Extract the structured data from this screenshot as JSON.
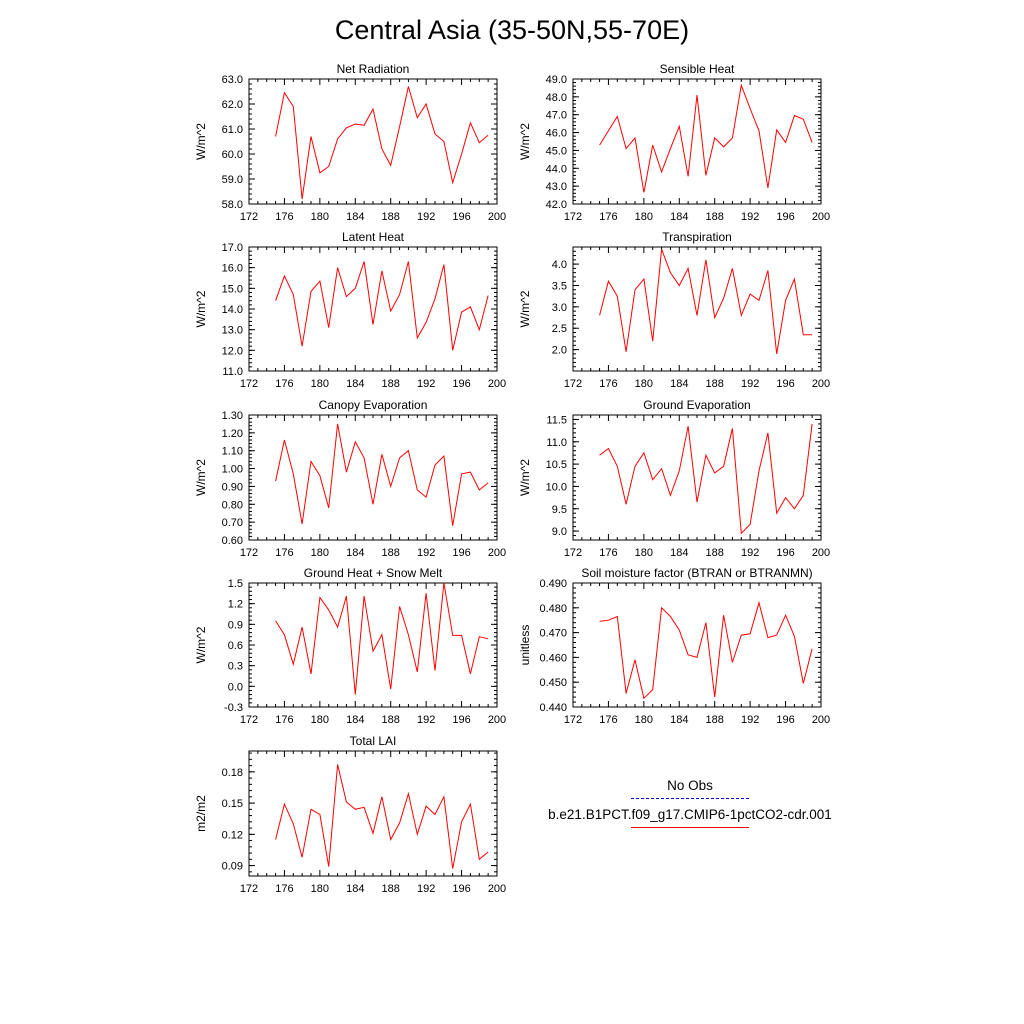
{
  "title": "Central Asia (35-50N,55-70E)",
  "legend": {
    "entries": [
      {
        "label": "No Obs",
        "color": "#0000cc",
        "style": "dashed"
      },
      {
        "label": "b.e21.B1PCT.f09_g17.CMIP6-1pctCO2-cdr.001",
        "color": "#ff0000",
        "style": "solid"
      }
    ]
  },
  "series_color": "#ff0000",
  "chart_data": [
    {
      "type": "line",
      "title": "Net Radiation",
      "xlabel": "",
      "ylabel": "W/m^2",
      "xlim": [
        172,
        200
      ],
      "ylim": [
        58.0,
        63.0
      ],
      "xticks": [
        "172",
        "176",
        "180",
        "184",
        "188",
        "192",
        "196",
        "200"
      ],
      "yticks": [
        "58.0",
        "59.0",
        "60.0",
        "61.0",
        "62.0",
        "63.0"
      ],
      "x": [
        175,
        176,
        177,
        178,
        179,
        180,
        181,
        182,
        183,
        184,
        185,
        186,
        187,
        188,
        189,
        190,
        191,
        192,
        193,
        194,
        195,
        196,
        197,
        198,
        199
      ],
      "series": [
        {
          "values": [
            60.7,
            62.45,
            61.9,
            58.2,
            60.7,
            59.25,
            59.5,
            60.6,
            61.05,
            61.2,
            61.15,
            61.8,
            60.2,
            59.55,
            61.1,
            62.7,
            61.45,
            62.0,
            60.8,
            60.5,
            58.85,
            60.0,
            61.25,
            60.45,
            60.75
          ]
        }
      ]
    },
    {
      "type": "line",
      "title": "Sensible Heat",
      "xlabel": "",
      "ylabel": "W/m^2",
      "xlim": [
        172,
        200
      ],
      "ylim": [
        42.0,
        49.0
      ],
      "xticks": [
        "172",
        "176",
        "180",
        "184",
        "188",
        "192",
        "196",
        "200"
      ],
      "yticks": [
        "42.0",
        "43.0",
        "44.0",
        "45.0",
        "46.0",
        "47.0",
        "48.0",
        "49.0"
      ],
      "x": [
        175,
        176,
        177,
        178,
        179,
        180,
        181,
        182,
        183,
        184,
        185,
        186,
        187,
        188,
        189,
        190,
        191,
        192,
        193,
        194,
        195,
        196,
        197,
        198,
        199
      ],
      "series": [
        {
          "values": [
            45.3,
            46.1,
            46.9,
            45.1,
            45.7,
            42.65,
            45.3,
            43.8,
            45.1,
            46.35,
            43.55,
            48.1,
            43.6,
            45.7,
            45.2,
            45.7,
            48.65,
            47.35,
            46.1,
            42.9,
            46.15,
            45.45,
            46.95,
            46.75,
            45.45
          ]
        }
      ]
    },
    {
      "type": "line",
      "title": "Latent Heat",
      "xlabel": "",
      "ylabel": "W/m^2",
      "xlim": [
        172,
        200
      ],
      "ylim": [
        11.0,
        17.0
      ],
      "xticks": [
        "172",
        "176",
        "180",
        "184",
        "188",
        "192",
        "196",
        "200"
      ],
      "yticks": [
        "11.0",
        "12.0",
        "13.0",
        "14.0",
        "15.0",
        "16.0",
        "17.0"
      ],
      "x": [
        175,
        176,
        177,
        178,
        179,
        180,
        181,
        182,
        183,
        184,
        185,
        186,
        187,
        188,
        189,
        190,
        191,
        192,
        193,
        194,
        195,
        196,
        197,
        198,
        199
      ],
      "series": [
        {
          "values": [
            14.4,
            15.6,
            14.7,
            12.2,
            14.85,
            15.35,
            13.1,
            16.0,
            14.6,
            15.0,
            16.3,
            13.25,
            15.85,
            13.9,
            14.7,
            16.3,
            12.6,
            13.35,
            14.5,
            16.15,
            12.0,
            13.85,
            14.1,
            13.0,
            14.65
          ]
        }
      ]
    },
    {
      "type": "line",
      "title": "Transpiration",
      "xlabel": "",
      "ylabel": "W/m^2",
      "xlim": [
        172,
        200
      ],
      "ylim": [
        1.5,
        4.4
      ],
      "xticks": [
        "172",
        "176",
        "180",
        "184",
        "188",
        "192",
        "196",
        "200"
      ],
      "yticks": [
        "2.0",
        "2.5",
        "3.0",
        "3.5",
        "4.0"
      ],
      "x": [
        175,
        176,
        177,
        178,
        179,
        180,
        181,
        182,
        183,
        184,
        185,
        186,
        187,
        188,
        189,
        190,
        191,
        192,
        193,
        194,
        195,
        196,
        197,
        198,
        199
      ],
      "series": [
        {
          "values": [
            2.8,
            3.6,
            3.25,
            1.95,
            3.4,
            3.65,
            2.2,
            4.35,
            3.8,
            3.5,
            3.9,
            2.8,
            4.1,
            2.75,
            3.2,
            3.9,
            2.8,
            3.3,
            3.15,
            3.85,
            1.9,
            3.15,
            3.65,
            2.35,
            2.35
          ]
        }
      ]
    },
    {
      "type": "line",
      "title": "Canopy Evaporation",
      "xlabel": "",
      "ylabel": "W/m^2",
      "xlim": [
        172,
        200
      ],
      "ylim": [
        0.6,
        1.3
      ],
      "xticks": [
        "172",
        "176",
        "180",
        "184",
        "188",
        "192",
        "196",
        "200"
      ],
      "yticks": [
        "0.60",
        "0.70",
        "0.80",
        "0.90",
        "1.00",
        "1.10",
        "1.20",
        "1.30"
      ],
      "x": [
        175,
        176,
        177,
        178,
        179,
        180,
        181,
        182,
        183,
        184,
        185,
        186,
        187,
        188,
        189,
        190,
        191,
        192,
        193,
        194,
        195,
        196,
        197,
        198,
        199
      ],
      "series": [
        {
          "values": [
            0.93,
            1.16,
            0.97,
            0.69,
            1.04,
            0.96,
            0.78,
            1.25,
            0.98,
            1.15,
            1.06,
            0.8,
            1.08,
            0.9,
            1.06,
            1.1,
            0.88,
            0.84,
            1.02,
            1.07,
            0.68,
            0.97,
            0.98,
            0.88,
            0.92
          ]
        }
      ]
    },
    {
      "type": "line",
      "title": "Ground Evaporation",
      "xlabel": "",
      "ylabel": "W/m^2",
      "xlim": [
        172,
        200
      ],
      "ylim": [
        8.8,
        11.6
      ],
      "xticks": [
        "172",
        "176",
        "180",
        "184",
        "188",
        "192",
        "196",
        "200"
      ],
      "yticks": [
        "9.0",
        "9.5",
        "10.0",
        "10.5",
        "11.0",
        "11.5"
      ],
      "x": [
        175,
        176,
        177,
        178,
        179,
        180,
        181,
        182,
        183,
        184,
        185,
        186,
        187,
        188,
        189,
        190,
        191,
        192,
        193,
        194,
        195,
        196,
        197,
        198,
        199
      ],
      "series": [
        {
          "values": [
            10.7,
            10.85,
            10.45,
            9.6,
            10.45,
            10.75,
            10.15,
            10.4,
            9.8,
            10.35,
            11.35,
            9.65,
            10.7,
            10.3,
            10.45,
            11.3,
            8.95,
            9.15,
            10.35,
            11.2,
            9.4,
            9.75,
            9.5,
            9.8,
            11.4
          ]
        }
      ]
    },
    {
      "type": "line",
      "title": "Ground Heat + Snow Melt",
      "xlabel": "",
      "ylabel": "W/m^2",
      "xlim": [
        172,
        200
      ],
      "ylim": [
        -0.3,
        1.5
      ],
      "xticks": [
        "172",
        "176",
        "180",
        "184",
        "188",
        "192",
        "196",
        "200"
      ],
      "yticks": [
        "-0.3",
        "0.0",
        "0.3",
        "0.6",
        "0.9",
        "1.2",
        "1.5"
      ],
      "x": [
        175,
        176,
        177,
        178,
        179,
        180,
        181,
        182,
        183,
        184,
        185,
        186,
        187,
        188,
        189,
        190,
        191,
        192,
        193,
        194,
        195,
        196,
        197,
        198,
        199
      ],
      "series": [
        {
          "values": [
            0.95,
            0.75,
            0.32,
            0.86,
            0.18,
            1.29,
            1.11,
            0.86,
            1.31,
            -0.12,
            1.31,
            0.51,
            0.75,
            -0.04,
            1.16,
            0.75,
            0.21,
            1.35,
            0.23,
            1.5,
            0.74,
            0.74,
            0.18,
            0.72,
            0.69
          ]
        }
      ]
    },
    {
      "type": "line",
      "title": "Soil moisture factor (BTRAN or BTRANMN)",
      "xlabel": "",
      "ylabel": "unitless",
      "xlim": [
        172,
        200
      ],
      "ylim": [
        0.44,
        0.49
      ],
      "xticks": [
        "172",
        "176",
        "180",
        "184",
        "188",
        "192",
        "196",
        "200"
      ],
      "yticks": [
        "0.440",
        "0.450",
        "0.460",
        "0.470",
        "0.480",
        "0.490"
      ],
      "x": [
        175,
        176,
        177,
        178,
        179,
        180,
        181,
        182,
        183,
        184,
        185,
        186,
        187,
        188,
        189,
        190,
        191,
        192,
        193,
        194,
        195,
        196,
        197,
        198,
        199
      ],
      "series": [
        {
          "values": [
            0.4745,
            0.475,
            0.4765,
            0.4455,
            0.459,
            0.4435,
            0.447,
            0.48,
            0.4765,
            0.471,
            0.461,
            0.46,
            0.474,
            0.444,
            0.477,
            0.458,
            0.469,
            0.4695,
            0.482,
            0.468,
            0.469,
            0.477,
            0.4685,
            0.4495,
            0.4635
          ]
        }
      ]
    },
    {
      "type": "line",
      "title": "Total LAI",
      "xlabel": "",
      "ylabel": "m2/m2",
      "xlim": [
        172,
        200
      ],
      "ylim": [
        0.08,
        0.2
      ],
      "xticks": [
        "172",
        "176",
        "180",
        "184",
        "188",
        "192",
        "196",
        "200"
      ],
      "yticks": [
        "0.09",
        "0.12",
        "0.15",
        "0.18"
      ],
      "x": [
        175,
        176,
        177,
        178,
        179,
        180,
        181,
        182,
        183,
        184,
        185,
        186,
        187,
        188,
        189,
        190,
        191,
        192,
        193,
        194,
        195,
        196,
        197,
        198,
        199
      ],
      "series": [
        {
          "values": [
            0.115,
            0.149,
            0.13,
            0.098,
            0.144,
            0.139,
            0.089,
            0.187,
            0.151,
            0.144,
            0.146,
            0.121,
            0.156,
            0.115,
            0.131,
            0.159,
            0.12,
            0.147,
            0.139,
            0.156,
            0.087,
            0.132,
            0.149,
            0.096,
            0.103
          ]
        }
      ]
    }
  ]
}
